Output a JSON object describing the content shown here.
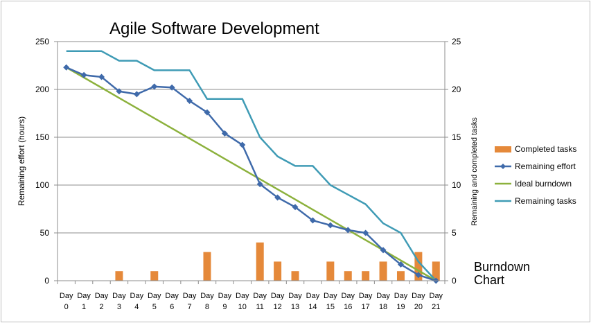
{
  "chart_data": {
    "type": "bar+line",
    "title": "Agile Software Development",
    "caption": [
      "Burndown",
      "Chart"
    ],
    "categories_top": [
      "Day",
      "Day",
      "Day",
      "Day",
      "Day",
      "Day",
      "Day",
      "Day",
      "Day",
      "Day",
      "Day",
      "Day",
      "Day",
      "Day",
      "Day",
      "Day",
      "Day",
      "Day",
      "Day",
      "Day",
      "Day",
      "Day"
    ],
    "categories_bottom": [
      "0",
      "1",
      "2",
      "3",
      "4",
      "5",
      "6",
      "7",
      "8",
      "9",
      "10",
      "11",
      "12",
      "13",
      "14",
      "15",
      "16",
      "17",
      "18",
      "19",
      "20",
      "21"
    ],
    "ylabel": "Remaining effort (hours)",
    "y2label": "Remaining and completed tasks",
    "ylim": [
      0,
      250
    ],
    "y2lim": [
      0,
      25
    ],
    "yticks": [
      "0",
      "50",
      "100",
      "150",
      "200",
      "250"
    ],
    "y2ticks": [
      "0",
      "5",
      "10",
      "15",
      "20",
      "25"
    ],
    "series": [
      {
        "name": "Completed tasks",
        "type": "bar",
        "axis": "y2",
        "color": "#e5893a",
        "values": [
          0,
          0,
          0,
          1,
          0,
          1,
          0,
          0,
          3,
          0,
          0,
          4,
          2,
          1,
          0,
          2,
          1,
          1,
          2,
          1,
          3,
          2
        ]
      },
      {
        "name": "Remaining effort",
        "type": "line",
        "axis": "y",
        "color": "#3f6aaa",
        "marker": "diamond",
        "values": [
          223,
          215,
          213,
          198,
          195,
          203,
          202,
          188,
          176,
          154,
          142,
          101,
          87,
          77,
          63,
          58,
          53,
          50,
          32,
          17,
          6,
          0
        ]
      },
      {
        "name": "Ideal burndown",
        "type": "line",
        "axis": "y",
        "color": "#8cb13c",
        "values": [
          223,
          212.4,
          201.8,
          191.1,
          180.5,
          169.9,
          159.3,
          148.7,
          138.1,
          127.4,
          116.8,
          106.2,
          95.6,
          85,
          74.3,
          63.7,
          53.1,
          42.5,
          31.9,
          21.2,
          10.6,
          0
        ]
      },
      {
        "name": "Remaining tasks",
        "type": "line",
        "axis": "y2",
        "color": "#3f9bb5",
        "values": [
          24,
          24,
          24,
          23,
          23,
          22,
          22,
          22,
          19,
          19,
          19,
          15,
          13,
          12,
          12,
          10,
          9,
          8,
          6,
          5,
          2,
          0
        ]
      }
    ],
    "grid": "horizontal",
    "legend_position": "right"
  }
}
